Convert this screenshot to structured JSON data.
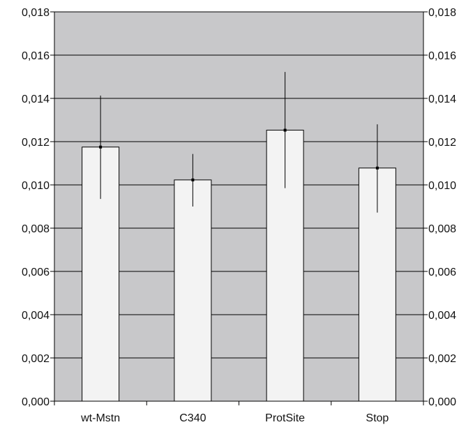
{
  "chart_data": {
    "type": "bar",
    "title": "",
    "xlabel": "",
    "ylabel": "",
    "categories": [
      "wt-Mstn",
      "C340",
      "ProtSite",
      "Stop"
    ],
    "values": [
      0.01175,
      0.01023,
      0.01253,
      0.01078
    ],
    "error_low": [
      0.00935,
      0.009,
      0.00985,
      0.00872
    ],
    "error_high": [
      0.01413,
      0.01143,
      0.01522,
      0.0128
    ],
    "ylim": [
      0,
      0.018
    ],
    "ytick_values": [
      0,
      0.002,
      0.004,
      0.006,
      0.008,
      0.01,
      0.012,
      0.014,
      0.016,
      0.018
    ],
    "ytick_labels": [
      "0,000",
      "0,002",
      "0,004",
      "0,006",
      "0,008",
      "0,010",
      "0,012",
      "0,014",
      "0,016",
      "0,018"
    ],
    "secondary_y_axis": true,
    "grid": true,
    "legend": "none"
  },
  "colors": {
    "plot_background": "#c8c8ca",
    "bar_fill": "#f3f3f3",
    "bar_stroke": "#000000",
    "grid": "#000000",
    "axis": "#000000",
    "error_bar": "#000000",
    "text": "#111111"
  }
}
